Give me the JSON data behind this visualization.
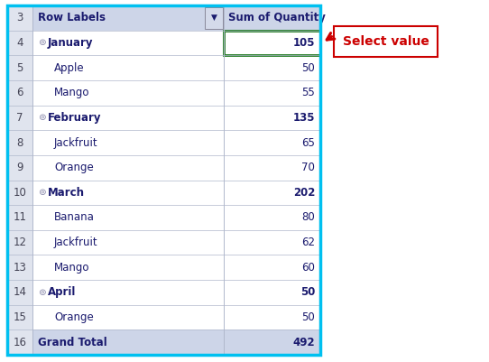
{
  "rows": [
    {
      "row_num": 3,
      "label": "Row Labels",
      "value": "Sum of Quantity",
      "is_header": true,
      "bold": true,
      "indent": 0
    },
    {
      "row_num": 4,
      "label": "⊚January",
      "value": "105",
      "is_month": true,
      "bold": true,
      "indent": 0,
      "selected": true
    },
    {
      "row_num": 5,
      "label": "Apple",
      "value": "50",
      "is_month": false,
      "bold": false,
      "indent": 1
    },
    {
      "row_num": 6,
      "label": "Mango",
      "value": "55",
      "is_month": false,
      "bold": false,
      "indent": 1
    },
    {
      "row_num": 7,
      "label": "⊚February",
      "value": "135",
      "is_month": true,
      "bold": true,
      "indent": 0
    },
    {
      "row_num": 8,
      "label": "Jackfruit",
      "value": "65",
      "is_month": false,
      "bold": false,
      "indent": 1
    },
    {
      "row_num": 9,
      "label": "Orange",
      "value": "70",
      "is_month": false,
      "bold": false,
      "indent": 1
    },
    {
      "row_num": 10,
      "label": "⊚March",
      "value": "202",
      "is_month": true,
      "bold": true,
      "indent": 0
    },
    {
      "row_num": 11,
      "label": "Banana",
      "value": "80",
      "is_month": false,
      "bold": false,
      "indent": 1
    },
    {
      "row_num": 12,
      "label": "Jackfruit",
      "value": "62",
      "is_month": false,
      "bold": false,
      "indent": 1
    },
    {
      "row_num": 13,
      "label": "Mango",
      "value": "60",
      "is_month": false,
      "bold": false,
      "indent": 1
    },
    {
      "row_num": 14,
      "label": "⊚April",
      "value": "50",
      "is_month": true,
      "bold": true,
      "indent": 0
    },
    {
      "row_num": 15,
      "label": "Orange",
      "value": "50",
      "is_month": false,
      "bold": false,
      "indent": 1
    },
    {
      "row_num": 16,
      "label": "Grand Total",
      "value": "492",
      "is_month": false,
      "bold": true,
      "indent": 0,
      "is_total": true
    }
  ],
  "header_bg": "#cdd5e8",
  "total_bg": "#cdd5e8",
  "row_num_bg": "#e0e4ee",
  "month_bg": "#ffffff",
  "fruit_bg": "#ffffff",
  "selected_border_color": "#1e7a1e",
  "outer_border_color": "#00c0f0",
  "row_line_color": "#b0b8cc",
  "col_divider_color": "#b0b8cc",
  "row_num_color": "#444455",
  "text_color": "#1a1a6e",
  "font_size": 8.5,
  "header_font_size": 8.5,
  "annotation_text": "Select value",
  "annotation_color": "#cc0000",
  "annotation_box_color": "#cc0000",
  "arrow_color": "#cc0000",
  "fig_width": 5.42,
  "fig_height": 4.01,
  "dpi": 100
}
